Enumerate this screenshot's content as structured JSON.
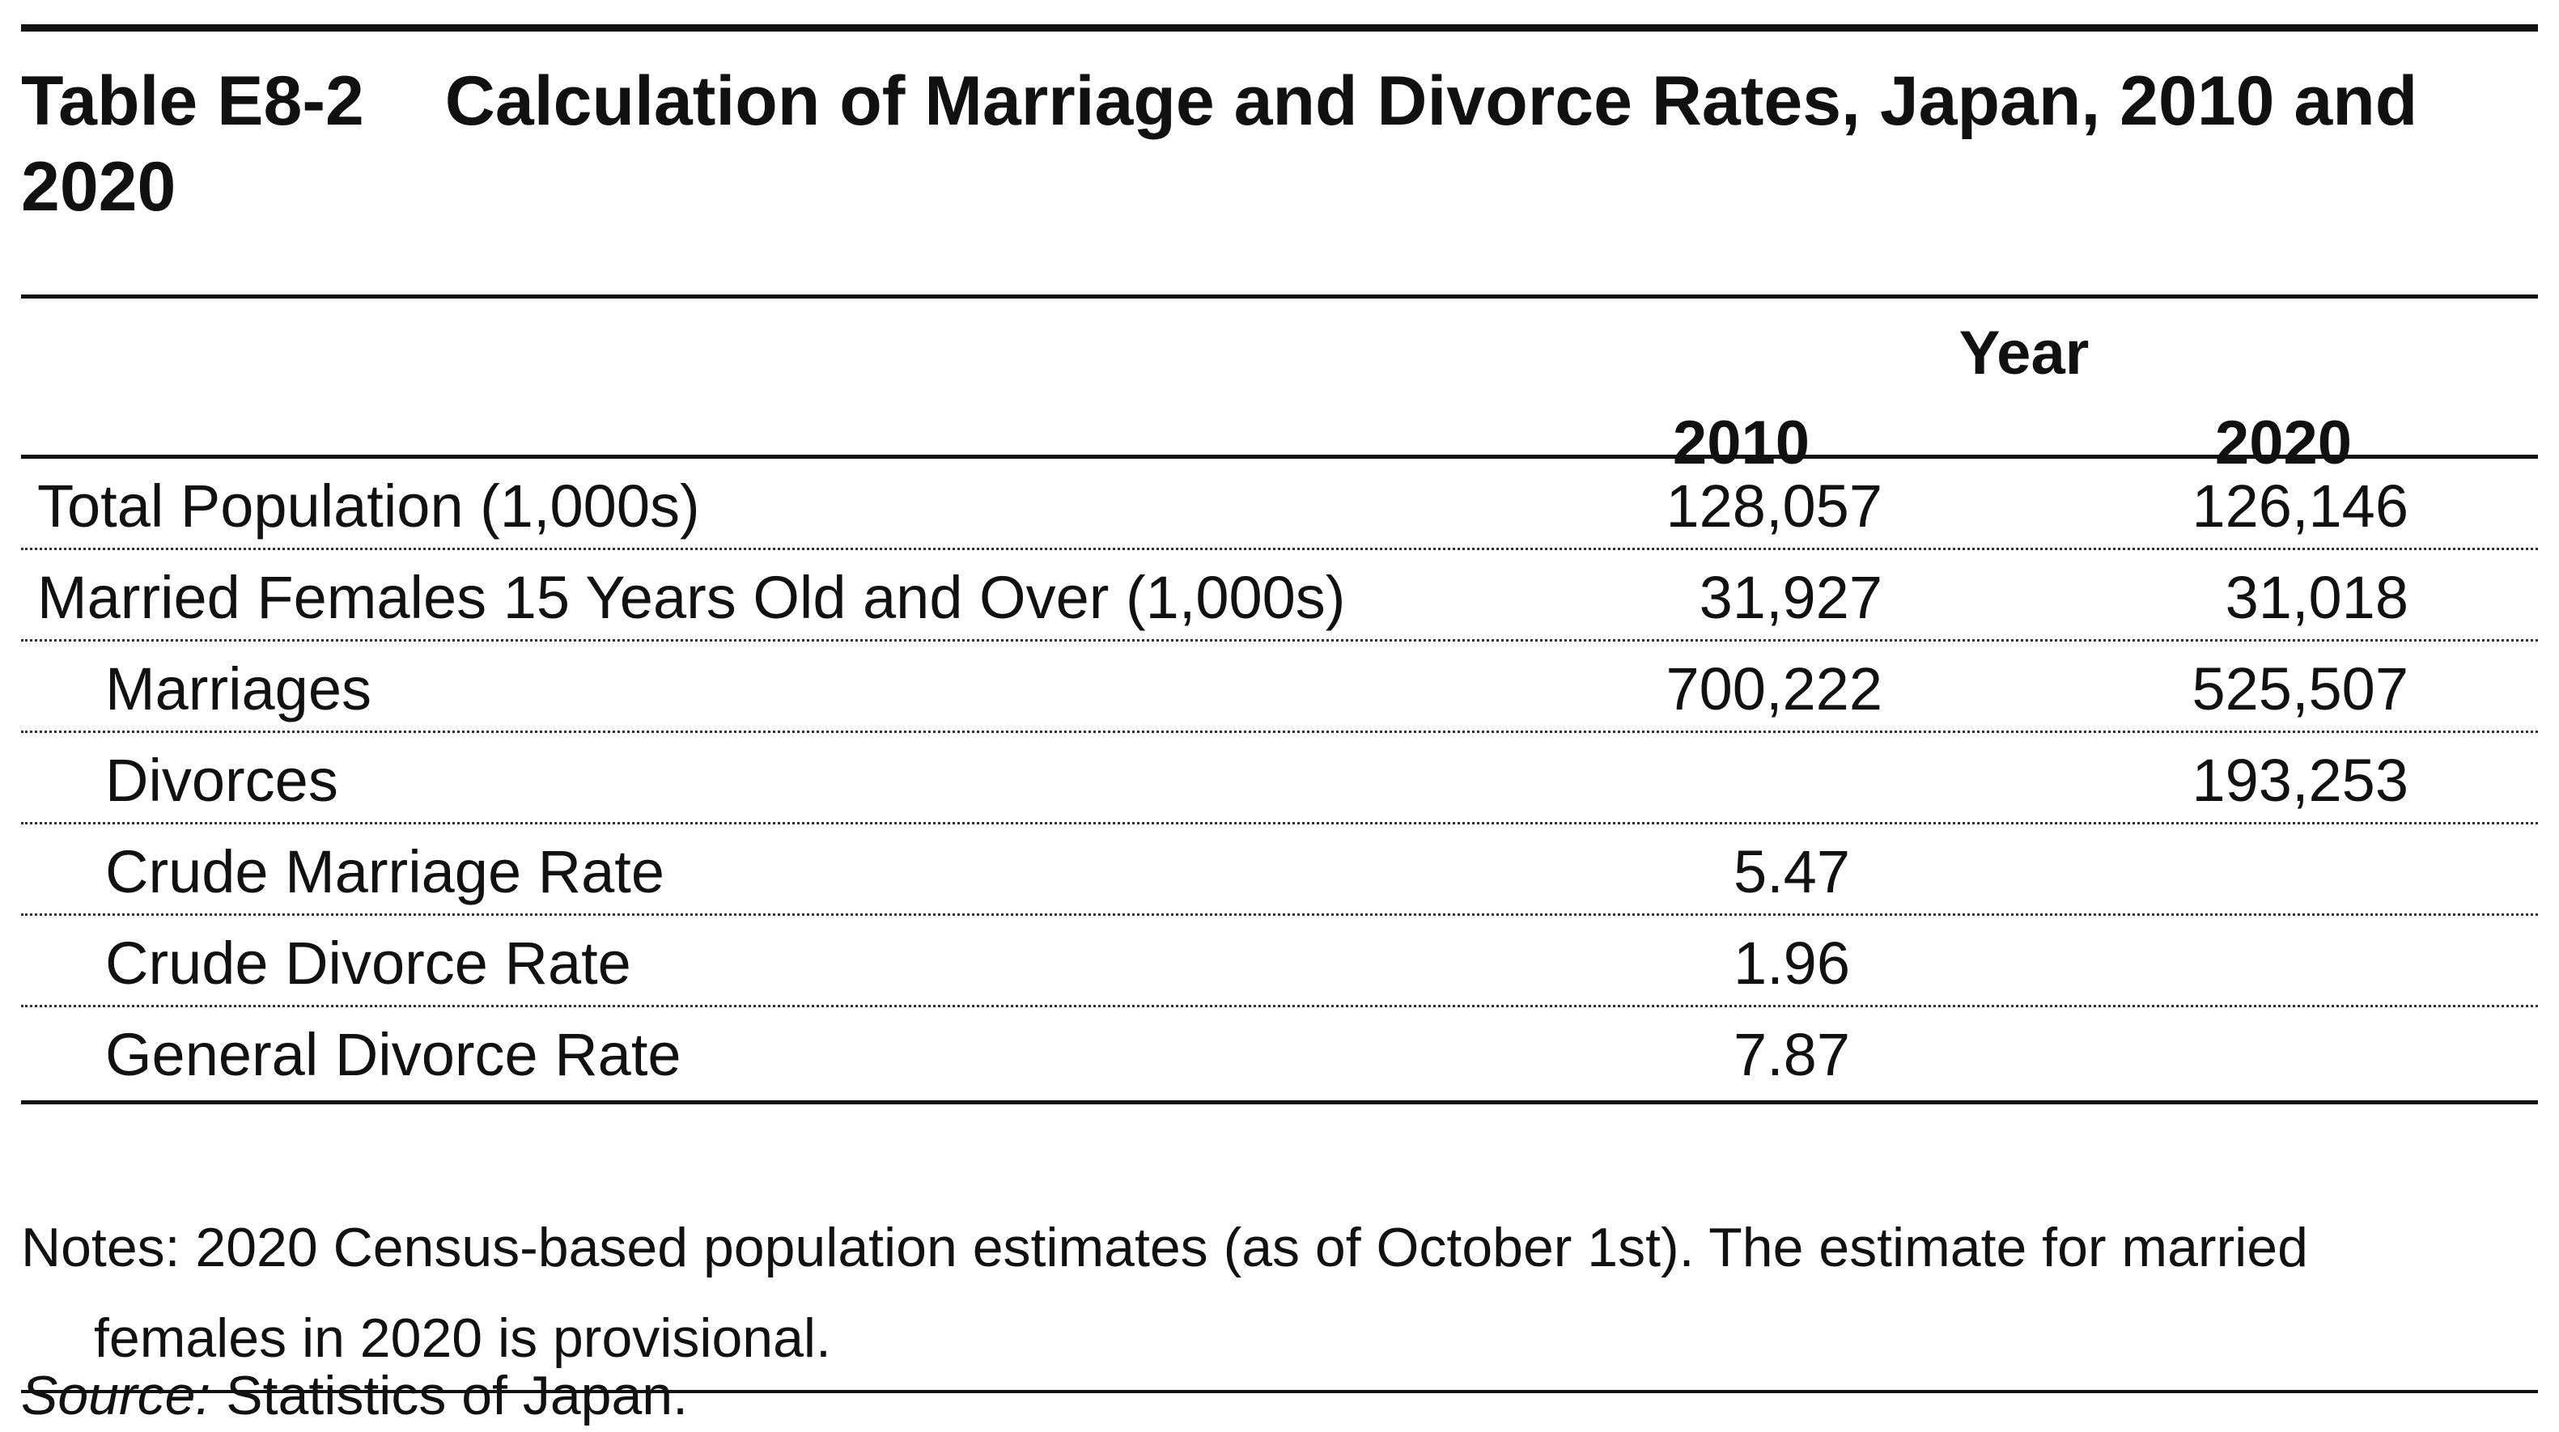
{
  "table": {
    "number": "Table E8-2",
    "title": "Calculation of Marriage and Divorce Rates, Japan, 2010 and 2020",
    "spanner": "Year",
    "columns": [
      "2010",
      "2020"
    ],
    "rows": [
      {
        "label": "Total Population (1,000s)",
        "v2010": "128,057",
        "v2020": "126,146"
      },
      {
        "label": "Married Females 15 Years Old and Over (1,000s)",
        "v2010": "31,927",
        "v2020": "31,018"
      },
      {
        "label": "Marriages",
        "v2010": "700,222",
        "v2020": "525,507"
      },
      {
        "label": "Divorces",
        "v2010": "",
        "v2020": "193,253"
      },
      {
        "label": "Crude Marriage Rate",
        "v2010": "5.47",
        "v2020": ""
      },
      {
        "label": "Crude Divorce Rate",
        "v2010": "1.96",
        "v2020": ""
      },
      {
        "label": "General Divorce Rate",
        "v2010": "7.87",
        "v2020": ""
      }
    ],
    "notes": "Notes: 2020 Census-based population estimates (as of October 1st). The estimate for married females in 2020 is provisional.",
    "source_label": "Source:",
    "source_text": " Statistics of Japan."
  }
}
